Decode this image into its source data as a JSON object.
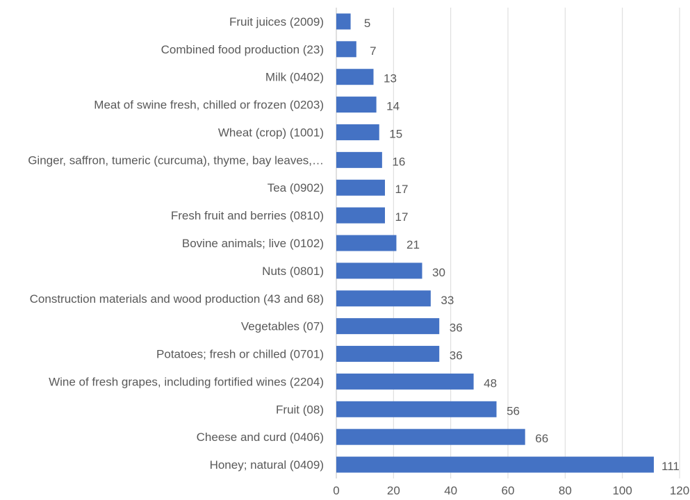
{
  "chart_data": {
    "type": "bar",
    "orientation": "horizontal",
    "title": "",
    "xlabel": "",
    "ylabel": "",
    "categories": [
      "Fruit juices (2009)",
      "Combined food production (23)",
      "Milk (0402)",
      "Meat of swine fresh, chilled or frozen (0203)",
      "Wheat (crop) (1001)",
      "Ginger, saffron, tumeric (curcuma), thyme, bay leaves,…",
      "Tea (0902)",
      "Fresh fruit and berries (0810)",
      "Bovine animals; live (0102)",
      "Nuts (0801)",
      "Construction materials and wood production (43 and 68)",
      "Vegetables  (07)",
      "Potatoes; fresh or chilled (0701)",
      "Wine of fresh grapes, including fortified wines  (2204)",
      "Fruit (08)",
      "Cheese and curd (0406)",
      "Honey; natural (0409)"
    ],
    "values": [
      5,
      7,
      13,
      14,
      15,
      16,
      17,
      17,
      21,
      30,
      33,
      36,
      36,
      48,
      56,
      66,
      111
    ],
    "xlim": [
      0,
      120
    ],
    "xticks": [
      0,
      20,
      40,
      60,
      80,
      100,
      120
    ],
    "grid": "vertical",
    "legend": "none",
    "bar_color": "#4472c4"
  }
}
